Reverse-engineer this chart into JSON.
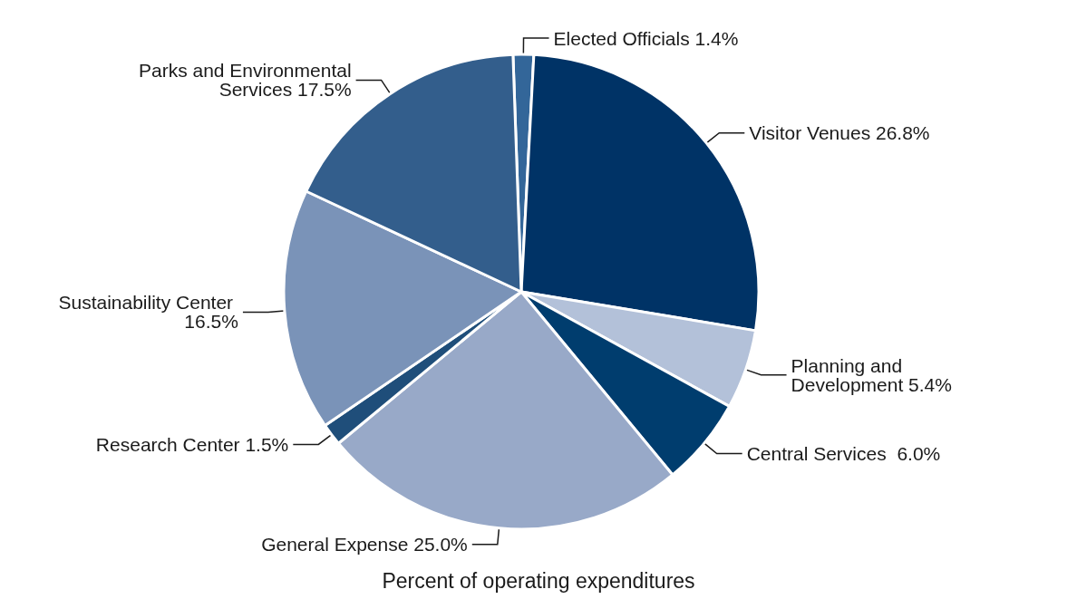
{
  "chart_data": {
    "type": "pie",
    "title": "Percent of operating expenditures",
    "categories": [
      "Elected Officials",
      "Visitor Venues",
      "Planning and Development",
      "Central Services ",
      "General Expense",
      "Research Center",
      "Sustainability Center",
      "Parks and Environmental Services"
    ],
    "values": [
      1.4,
      26.8,
      5.4,
      6.0,
      25.0,
      1.5,
      16.5,
      17.5
    ],
    "value_labels": [
      "1.4%",
      "26.8%",
      "5.4%",
      "6.0%",
      "25.0%",
      "1.5%",
      "16.5%",
      "17.5%"
    ],
    "colors": [
      "#336699",
      "#003366",
      "#b3c1d9",
      "#003d6e",
      "#98a9c8",
      "#1f4e7a",
      "#7a93b8",
      "#335e8c"
    ],
    "legend": false
  }
}
